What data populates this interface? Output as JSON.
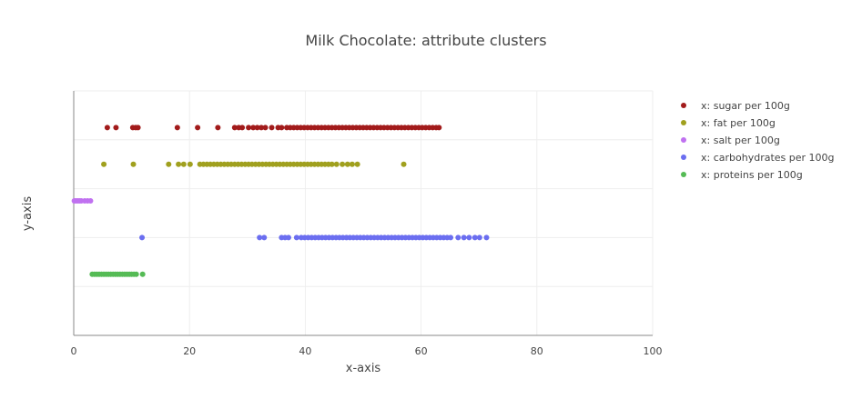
{
  "chart_data": {
    "type": "scatter",
    "title": "Milk Chocolate: attribute clusters",
    "xlabel": "x-axis",
    "ylabel": "y-axis",
    "xlim": [
      0,
      100
    ],
    "xticks": [
      0,
      20,
      40,
      60,
      80,
      100
    ],
    "ylim": [
      0,
      5
    ],
    "grid": true,
    "legend_position": "top-right",
    "series": [
      {
        "name": "x: sugar per 100g",
        "color": "#a21b1b",
        "y": 4.25,
        "x": [
          5.8,
          7.3,
          10.2,
          10.7,
          11.1,
          17.9,
          21.4,
          24.9,
          27.8,
          28.5,
          29.1,
          30.2,
          31.0,
          31.7,
          32.4,
          33.1,
          34.2,
          35.3,
          35.9,
          36.8,
          37.4,
          38.0,
          38.6,
          39.2,
          39.8,
          40.4,
          41.0,
          41.6,
          42.2,
          42.8,
          43.4,
          44.0,
          44.6,
          45.2,
          45.8,
          46.4,
          47.0,
          47.6,
          48.2,
          48.8,
          49.4,
          50.0,
          50.6,
          51.2,
          51.8,
          52.4,
          53.0,
          53.6,
          54.2,
          54.8,
          55.4,
          56.0,
          56.6,
          57.2,
          57.8,
          58.4,
          59.0,
          59.6,
          60.2,
          60.8,
          61.4,
          62.0,
          62.6,
          63.1
        ]
      },
      {
        "name": "x: fat per 100g",
        "color": "#a0a01e",
        "y": 3.5,
        "x": [
          5.2,
          10.3,
          16.4,
          18.1,
          19.0,
          20.1,
          21.8,
          22.4,
          23.0,
          23.6,
          24.2,
          24.8,
          25.4,
          26.0,
          26.6,
          27.2,
          27.8,
          28.4,
          29.0,
          29.6,
          30.2,
          30.8,
          31.4,
          32.0,
          32.6,
          33.2,
          33.8,
          34.4,
          35.0,
          35.6,
          36.2,
          36.8,
          37.4,
          38.0,
          38.6,
          39.2,
          39.8,
          40.4,
          41.0,
          41.6,
          42.2,
          42.8,
          43.4,
          44.0,
          44.6,
          45.4,
          46.4,
          47.3,
          48.1,
          49.0,
          57.0
        ]
      },
      {
        "name": "x: salt per 100g",
        "color": "#c071f0",
        "y": 2.75,
        "x": [
          0.1,
          0.4,
          0.7,
          1.0,
          1.3,
          1.9,
          2.4,
          2.9
        ]
      },
      {
        "name": "x: carbohydrates per 100g",
        "color": "#6b6ef0",
        "y": 2.0,
        "x": [
          11.8,
          32.1,
          32.9,
          35.9,
          36.5,
          37.1,
          38.5,
          39.3,
          39.9,
          40.5,
          41.1,
          41.7,
          42.3,
          42.9,
          43.5,
          44.1,
          44.7,
          45.3,
          45.9,
          46.5,
          47.1,
          47.7,
          48.3,
          48.9,
          49.5,
          50.1,
          50.7,
          51.3,
          51.9,
          52.5,
          53.1,
          53.7,
          54.3,
          54.9,
          55.5,
          56.1,
          56.7,
          57.3,
          57.9,
          58.5,
          59.1,
          59.7,
          60.3,
          60.9,
          61.5,
          62.1,
          62.7,
          63.3,
          63.9,
          64.5,
          65.1,
          66.4,
          67.4,
          68.3,
          69.3,
          70.1,
          71.3
        ]
      },
      {
        "name": "x: proteins per 100g",
        "color": "#55bb55",
        "y": 1.25,
        "x": [
          3.2,
          3.6,
          4.0,
          4.4,
          4.8,
          5.2,
          5.6,
          6.0,
          6.4,
          6.8,
          7.2,
          7.6,
          8.0,
          8.4,
          8.8,
          9.2,
          9.6,
          10.0,
          10.4,
          10.8,
          11.9
        ]
      }
    ]
  }
}
